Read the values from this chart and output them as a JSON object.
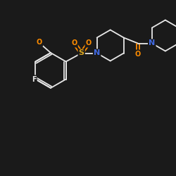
{
  "background_color": "#1a1a1a",
  "bond_color": "#e8e8e8",
  "atom_colors": {
    "F": "#e8e8e8",
    "O": "#FF8C00",
    "S": "#DAA520",
    "N": "#4169E1"
  },
  "figsize": [
    2.5,
    2.5
  ],
  "dpi": 100,
  "lw": 1.3
}
